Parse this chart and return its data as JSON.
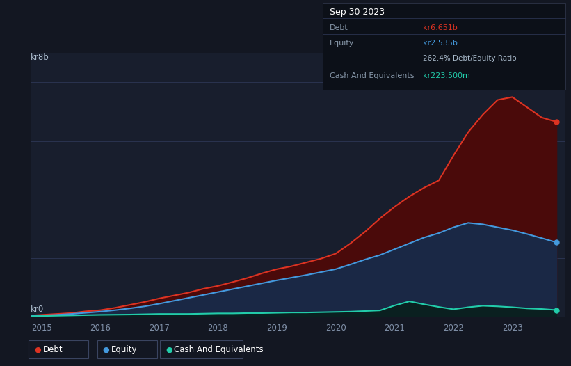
{
  "background_color": "#131722",
  "plot_bg_color": "#181e2d",
  "grid_color": "#2a3350",
  "title_box": {
    "date": "Sep 30 2023",
    "debt_label": "Debt",
    "debt_value": "kr6.651b",
    "equity_label": "Equity",
    "equity_value": "kr2.535b",
    "ratio_text": "262.4% Debt/Equity Ratio",
    "cash_label": "Cash And Equivalents",
    "cash_value": "kr223.500m"
  },
  "ylabel_text": "kr8b",
  "y0_text": "kr0",
  "x_ticks": [
    2015,
    2016,
    2017,
    2018,
    2019,
    2020,
    2021,
    2022,
    2023
  ],
  "ylim": [
    0,
    9.0
  ],
  "debt_color": "#dd3322",
  "equity_color": "#4499dd",
  "cash_color": "#22ccaa",
  "debt_fill_color": "#4a0a0a",
  "equity_fill_color": "#1a2845",
  "cash_fill_color": "#0a2020",
  "debt_data_x": [
    2014.83,
    2015.0,
    2015.25,
    2015.5,
    2015.75,
    2016.0,
    2016.25,
    2016.5,
    2016.75,
    2017.0,
    2017.25,
    2017.5,
    2017.75,
    2018.0,
    2018.25,
    2018.5,
    2018.75,
    2019.0,
    2019.25,
    2019.5,
    2019.75,
    2020.0,
    2020.25,
    2020.5,
    2020.75,
    2021.0,
    2021.25,
    2021.5,
    2021.75,
    2022.0,
    2022.25,
    2022.5,
    2022.75,
    2023.0,
    2023.25,
    2023.5,
    2023.75
  ],
  "debt_data_y": [
    0.04,
    0.06,
    0.09,
    0.12,
    0.18,
    0.22,
    0.3,
    0.4,
    0.5,
    0.62,
    0.72,
    0.82,
    0.95,
    1.05,
    1.18,
    1.32,
    1.48,
    1.62,
    1.72,
    1.85,
    1.98,
    2.15,
    2.5,
    2.9,
    3.35,
    3.75,
    4.1,
    4.4,
    4.65,
    5.5,
    6.3,
    6.9,
    7.4,
    7.5,
    7.15,
    6.8,
    6.651
  ],
  "equity_data_x": [
    2014.83,
    2015.0,
    2015.25,
    2015.5,
    2015.75,
    2016.0,
    2016.25,
    2016.5,
    2016.75,
    2017.0,
    2017.25,
    2017.5,
    2017.75,
    2018.0,
    2018.25,
    2018.5,
    2018.75,
    2019.0,
    2019.25,
    2019.5,
    2019.75,
    2020.0,
    2020.25,
    2020.5,
    2020.75,
    2021.0,
    2021.25,
    2021.5,
    2021.75,
    2022.0,
    2022.25,
    2022.5,
    2022.75,
    2023.0,
    2023.25,
    2023.5,
    2023.75
  ],
  "equity_data_y": [
    0.02,
    0.04,
    0.06,
    0.09,
    0.13,
    0.17,
    0.22,
    0.28,
    0.35,
    0.44,
    0.54,
    0.64,
    0.74,
    0.84,
    0.94,
    1.04,
    1.14,
    1.24,
    1.33,
    1.42,
    1.52,
    1.62,
    1.78,
    1.95,
    2.1,
    2.3,
    2.5,
    2.7,
    2.85,
    3.05,
    3.2,
    3.15,
    3.05,
    2.95,
    2.82,
    2.68,
    2.535
  ],
  "cash_data_x": [
    2014.83,
    2015.0,
    2015.25,
    2015.5,
    2015.75,
    2016.0,
    2016.25,
    2016.5,
    2016.75,
    2017.0,
    2017.25,
    2017.5,
    2017.75,
    2018.0,
    2018.25,
    2018.5,
    2018.75,
    2019.0,
    2019.25,
    2019.5,
    2019.75,
    2020.0,
    2020.25,
    2020.5,
    2020.75,
    2021.0,
    2021.25,
    2021.5,
    2021.75,
    2022.0,
    2022.25,
    2022.5,
    2022.75,
    2023.0,
    2023.25,
    2023.5,
    2023.75
  ],
  "cash_data_y": [
    0.015,
    0.02,
    0.03,
    0.04,
    0.05,
    0.06,
    0.065,
    0.07,
    0.08,
    0.09,
    0.09,
    0.09,
    0.1,
    0.11,
    0.11,
    0.12,
    0.12,
    0.13,
    0.14,
    0.14,
    0.15,
    0.16,
    0.17,
    0.19,
    0.21,
    0.38,
    0.52,
    0.42,
    0.33,
    0.25,
    0.32,
    0.37,
    0.35,
    0.32,
    0.28,
    0.26,
    0.2235
  ],
  "legend_items": [
    {
      "label": "Debt",
      "color": "#dd3322"
    },
    {
      "label": "Equity",
      "color": "#4499dd"
    },
    {
      "label": "Cash And Equivalents",
      "color": "#22ccaa"
    }
  ]
}
